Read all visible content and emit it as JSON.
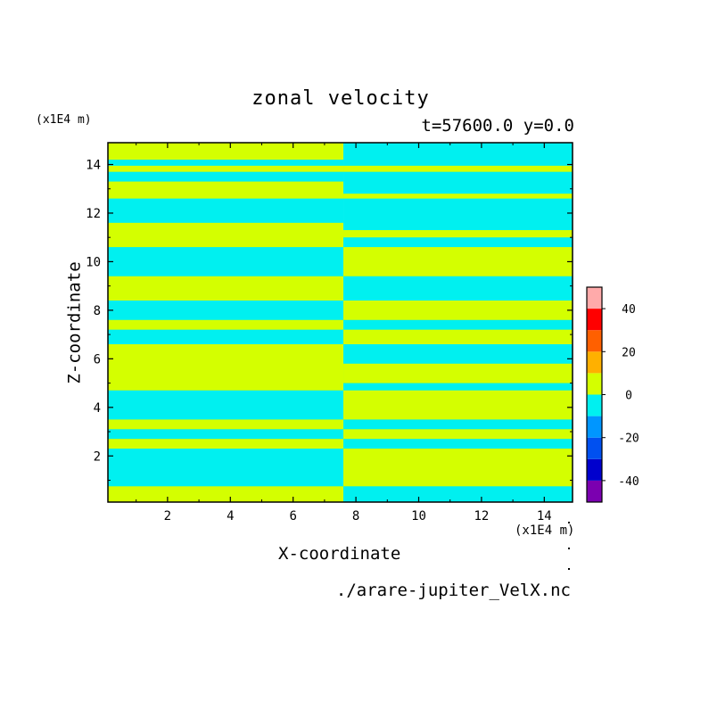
{
  "chart_data": {
    "type": "heatmap",
    "title": "zonal velocity",
    "subtitle": "t=57600.0 y=0.0",
    "xlabel": "X-coordinate",
    "ylabel": "Z-coordinate",
    "x_unit": "(x1E4 m)",
    "y_unit": "(x1E4 m)",
    "source": "./arare-jupiter_VelX.nc",
    "xlim": [
      0.1,
      14.9
    ],
    "ylim": [
      0.1,
      14.9
    ],
    "xticks": [
      2,
      4,
      6,
      8,
      10,
      12,
      14
    ],
    "yticks": [
      2,
      4,
      6,
      8,
      10,
      12,
      14
    ],
    "colorbar": {
      "levels": [
        -50,
        -40,
        -30,
        -20,
        -10,
        0,
        10,
        20,
        30,
        40,
        50
      ],
      "tick_labels": [
        -40,
        -20,
        0,
        20,
        40
      ],
      "colors": [
        "#7b00b0",
        "#0000cd",
        "#0050f0",
        "#0096ff",
        "#00f0f0",
        "#d4ff00",
        "#ffb000",
        "#ff6000",
        "#ff0000",
        "#ffaaaa"
      ]
    },
    "field_colors": {
      "negative": "#00f0f0",
      "positive": "#d4ff00"
    },
    "left_half": {
      "x_range": [
        0.1,
        7.6
      ],
      "background": "positive",
      "bands": [
        {
          "z": [
            0.1,
            0.75
          ],
          "sign": "positive"
        },
        {
          "z": [
            0.75,
            2.3
          ],
          "sign": "negative"
        },
        {
          "z": [
            2.7,
            3.1
          ],
          "sign": "negative"
        },
        {
          "z": [
            3.5,
            4.7
          ],
          "sign": "negative"
        },
        {
          "z": [
            6.6,
            7.2
          ],
          "sign": "negative"
        },
        {
          "z": [
            7.6,
            8.4
          ],
          "sign": "negative"
        },
        {
          "z": [
            9.4,
            10.6
          ],
          "sign": "negative"
        },
        {
          "z": [
            11.6,
            12.6
          ],
          "sign": "negative"
        },
        {
          "z": [
            13.3,
            13.7
          ],
          "sign": "negative"
        },
        {
          "z": [
            13.95,
            14.2
          ],
          "sign": "negative"
        }
      ]
    },
    "right_half": {
      "x_range": [
        7.6,
        14.9
      ],
      "background": "negative",
      "bands": [
        {
          "z": [
            0.1,
            0.75
          ],
          "sign": "negative"
        },
        {
          "z": [
            0.75,
            2.3
          ],
          "sign": "positive"
        },
        {
          "z": [
            2.7,
            3.1
          ],
          "sign": "positive"
        },
        {
          "z": [
            3.5,
            4.7
          ],
          "sign": "positive"
        },
        {
          "z": [
            5.0,
            5.8
          ],
          "sign": "positive"
        },
        {
          "z": [
            6.6,
            7.2
          ],
          "sign": "positive"
        },
        {
          "z": [
            7.6,
            8.4
          ],
          "sign": "positive"
        },
        {
          "z": [
            9.4,
            10.6
          ],
          "sign": "positive"
        },
        {
          "z": [
            11.0,
            11.3
          ],
          "sign": "positive"
        },
        {
          "z": [
            12.6,
            12.8
          ],
          "sign": "positive"
        },
        {
          "z": [
            13.7,
            13.95
          ],
          "sign": "positive"
        }
      ]
    }
  }
}
